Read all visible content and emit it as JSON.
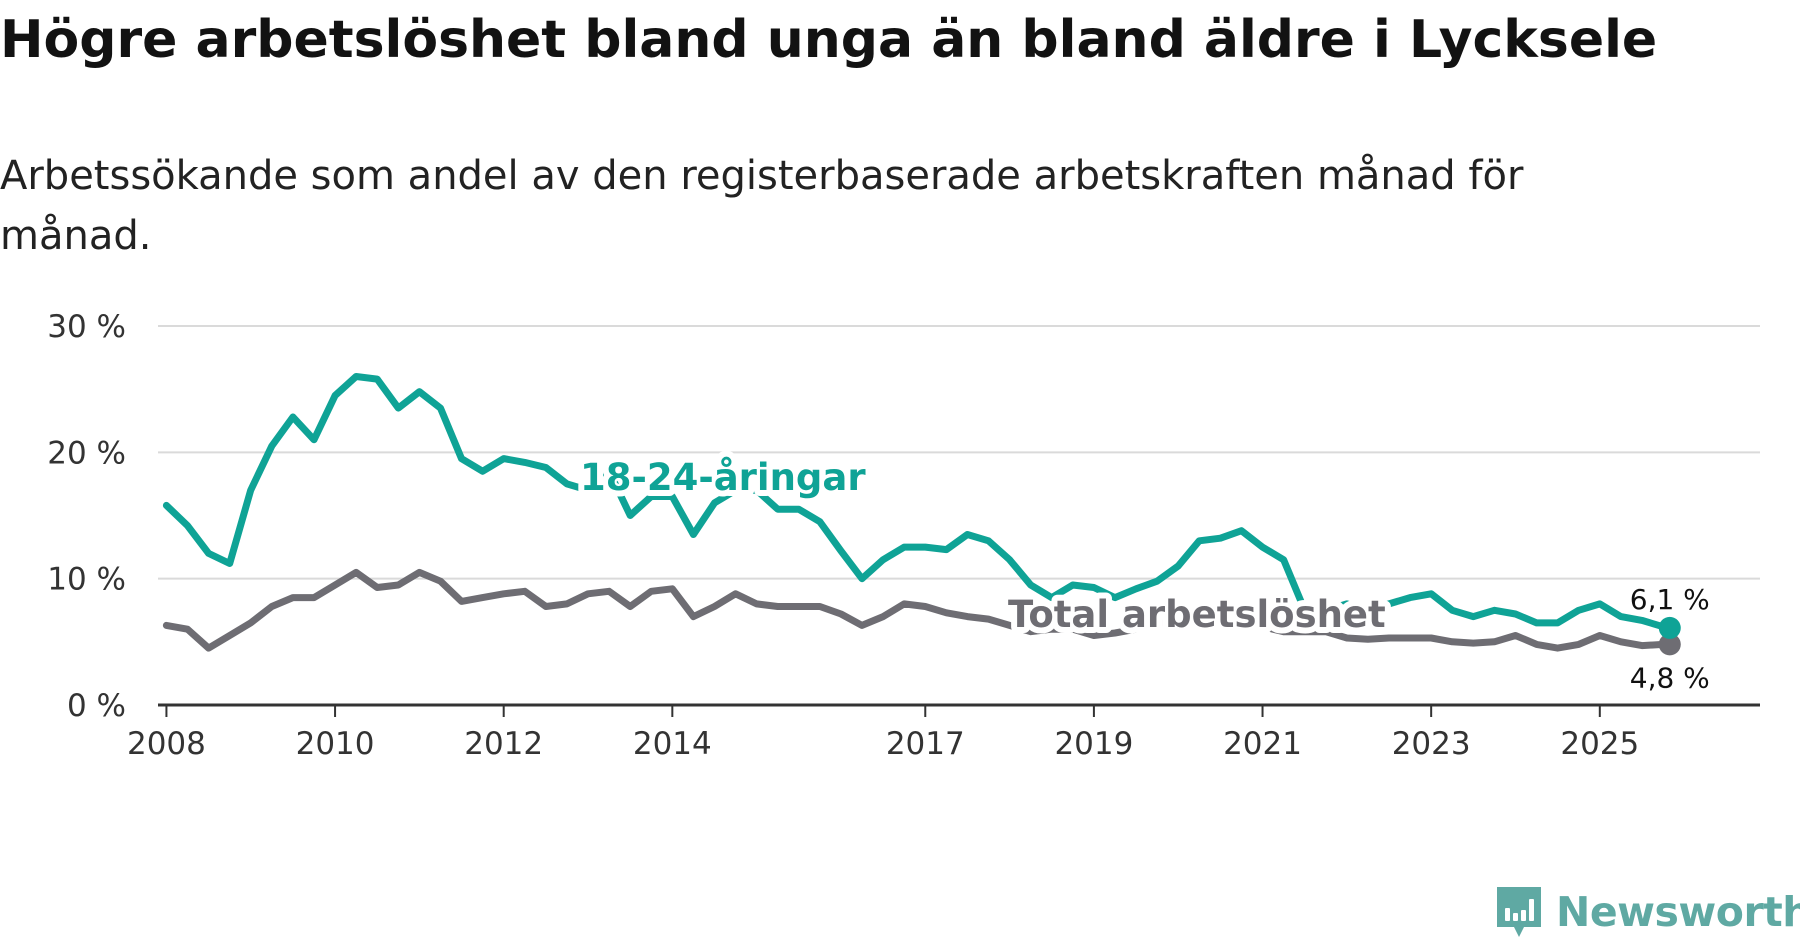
{
  "title": "Högre arbetslöshet bland unga än bland äldre i Lycksele",
  "subtitle": "Arbetssökande som andel av den registerbaserade arbetskraften månad för månad.",
  "brand": {
    "name": "Newsworthy"
  },
  "chart_data": {
    "type": "line",
    "xlabel": "",
    "ylabel": "",
    "ylim": [
      0,
      30
    ],
    "xlim": [
      2007.9,
      2026.9
    ],
    "grid": true,
    "y_ticks": [
      {
        "value": 0,
        "label": "0 %"
      },
      {
        "value": 10,
        "label": "10 %"
      },
      {
        "value": 20,
        "label": "20 %"
      },
      {
        "value": 30,
        "label": "30 %"
      }
    ],
    "x_ticks": [
      {
        "value": 2008,
        "label": "2008"
      },
      {
        "value": 2010,
        "label": "2010"
      },
      {
        "value": 2012,
        "label": "2012"
      },
      {
        "value": 2014,
        "label": "2014"
      },
      {
        "value": 2017,
        "label": "2017"
      },
      {
        "value": 2019,
        "label": "2019"
      },
      {
        "value": 2021,
        "label": "2021"
      },
      {
        "value": 2023,
        "label": "2023"
      },
      {
        "value": 2025,
        "label": "2025"
      }
    ],
    "series": [
      {
        "name": "18-24-åringar",
        "color": "#0fa396",
        "end_label": "6,1 %",
        "x": [
          2008.0,
          2008.25,
          2008.5,
          2008.75,
          2009.0,
          2009.25,
          2009.5,
          2009.75,
          2010.0,
          2010.25,
          2010.5,
          2010.75,
          2011.0,
          2011.25,
          2011.5,
          2011.75,
          2012.0,
          2012.25,
          2012.5,
          2012.75,
          2013.0,
          2013.25,
          2013.5,
          2013.75,
          2014.0,
          2014.25,
          2014.5,
          2014.75,
          2015.0,
          2015.25,
          2015.5,
          2015.75,
          2016.0,
          2016.25,
          2016.5,
          2016.75,
          2017.0,
          2017.25,
          2017.5,
          2017.75,
          2018.0,
          2018.25,
          2018.5,
          2018.75,
          2019.0,
          2019.25,
          2019.5,
          2019.75,
          2020.0,
          2020.25,
          2020.5,
          2020.75,
          2021.0,
          2021.25,
          2021.5,
          2021.75,
          2022.0,
          2022.25,
          2022.5,
          2022.75,
          2023.0,
          2023.25,
          2023.5,
          2023.75,
          2024.0,
          2024.25,
          2024.5,
          2024.75,
          2025.0,
          2025.25,
          2025.5,
          2025.75,
          2025.83
        ],
        "values": [
          15.8,
          14.2,
          12.0,
          11.2,
          17.0,
          20.5,
          22.8,
          21.0,
          24.5,
          26.0,
          25.8,
          23.5,
          24.8,
          23.5,
          19.5,
          18.5,
          19.5,
          19.2,
          18.8,
          17.5,
          17.0,
          18.5,
          15.0,
          16.5,
          16.5,
          13.5,
          16.0,
          17.0,
          17.0,
          15.5,
          15.5,
          14.5,
          12.2,
          10.0,
          11.5,
          12.5,
          12.5,
          12.3,
          13.5,
          13.0,
          11.5,
          9.5,
          8.5,
          9.5,
          9.3,
          8.5,
          9.2,
          9.8,
          11.0,
          13.0,
          13.2,
          13.8,
          12.5,
          11.5,
          7.5,
          7.5,
          8.0,
          7.5,
          8.0,
          8.5,
          8.8,
          7.5,
          7.0,
          7.5,
          7.2,
          6.5,
          6.5,
          7.5,
          8.0,
          7.0,
          6.7,
          6.2,
          6.1
        ]
      },
      {
        "name": "Total arbetslöshet",
        "color": "#6e6d73",
        "end_label": "4,8 %",
        "x": [
          2008.0,
          2008.25,
          2008.5,
          2008.75,
          2009.0,
          2009.25,
          2009.5,
          2009.75,
          2010.0,
          2010.25,
          2010.5,
          2010.75,
          2011.0,
          2011.25,
          2011.5,
          2011.75,
          2012.0,
          2012.25,
          2012.5,
          2012.75,
          2013.0,
          2013.25,
          2013.5,
          2013.75,
          2014.0,
          2014.25,
          2014.5,
          2014.75,
          2015.0,
          2015.25,
          2015.5,
          2015.75,
          2016.0,
          2016.25,
          2016.5,
          2016.75,
          2017.0,
          2017.25,
          2017.5,
          2017.75,
          2018.0,
          2018.25,
          2018.5,
          2018.75,
          2019.0,
          2019.25,
          2019.5,
          2019.75,
          2020.0,
          2020.25,
          2020.5,
          2020.75,
          2021.0,
          2021.25,
          2021.5,
          2021.75,
          2022.0,
          2022.25,
          2022.5,
          2022.75,
          2023.0,
          2023.25,
          2023.5,
          2023.75,
          2024.0,
          2024.25,
          2024.5,
          2024.75,
          2025.0,
          2025.25,
          2025.5,
          2025.75,
          2025.83
        ],
        "values": [
          6.3,
          6.0,
          4.5,
          5.5,
          6.5,
          7.8,
          8.5,
          8.5,
          9.5,
          10.5,
          9.3,
          9.5,
          10.5,
          9.8,
          8.2,
          8.5,
          8.8,
          9.0,
          7.8,
          8.0,
          8.8,
          9.0,
          7.8,
          9.0,
          9.2,
          7.0,
          7.8,
          8.8,
          8.0,
          7.8,
          7.8,
          7.8,
          7.2,
          6.3,
          7.0,
          8.0,
          7.8,
          7.3,
          7.0,
          6.8,
          6.3,
          5.8,
          6.0,
          6.0,
          5.5,
          5.7,
          6.0,
          6.5,
          6.5,
          6.8,
          6.7,
          6.3,
          6.2,
          5.8,
          5.8,
          5.8,
          5.3,
          5.2,
          5.3,
          5.3,
          5.3,
          5.0,
          4.9,
          5.0,
          5.5,
          4.8,
          4.5,
          4.8,
          5.5,
          5.0,
          4.7,
          4.8,
          4.8
        ]
      }
    ]
  }
}
